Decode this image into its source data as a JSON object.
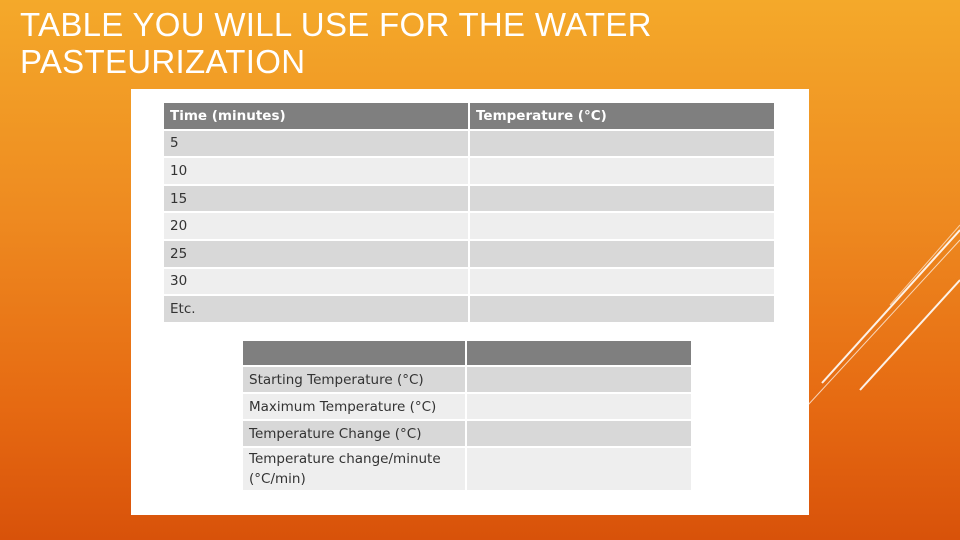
{
  "slide": {
    "title": "TABLE YOU WILL USE FOR THE WATER PASTEURIZATION"
  },
  "table1": {
    "headers": [
      "Time (minutes)",
      "Temperature (°C)"
    ],
    "rows": [
      "5",
      "10",
      "15",
      "20",
      "25",
      "30",
      "Etc."
    ]
  },
  "table2": {
    "headers": [
      "",
      ""
    ],
    "rows": [
      "Starting Temperature (°C)",
      "Maximum Temperature (°C)",
      "Temperature Change (°C)",
      "Temperature change/minute (°C/min)"
    ]
  },
  "colors": {
    "header_bg": "#7f7f7f",
    "row_dark": "#d8d8d8",
    "row_light": "#eeeeee",
    "gradient_top": "#f4a92a",
    "gradient_bottom": "#d8520a"
  }
}
